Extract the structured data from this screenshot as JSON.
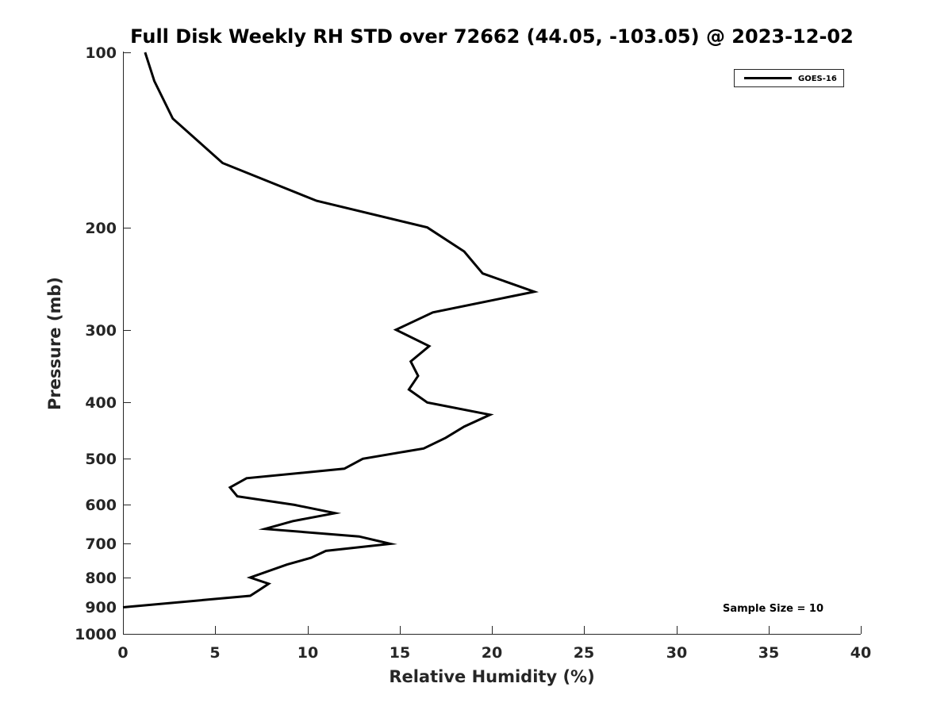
{
  "chart_data": {
    "type": "line",
    "title": "Full Disk Weekly RH STD over 72662 (44.05, -103.05) @ 2023-12-02",
    "xlabel": "Relative Humidity (%)",
    "ylabel": "Pressure (mb)",
    "xlim": [
      0,
      40
    ],
    "ylim": [
      100,
      1000
    ],
    "y_scale": "log",
    "y_reversed": true,
    "grid": false,
    "x_ticks": [
      0,
      5,
      10,
      15,
      20,
      25,
      30,
      35,
      40
    ],
    "x_tick_labels": [
      "0",
      "5",
      "10",
      "15",
      "20",
      "25",
      "30",
      "35",
      "40"
    ],
    "y_ticks": [
      100,
      200,
      300,
      400,
      500,
      600,
      700,
      800,
      900,
      1000
    ],
    "y_tick_labels": [
      "100",
      "200",
      "300",
      "400",
      "500",
      "600",
      "700",
      "800",
      "900",
      "1000"
    ],
    "legend_position": "top-right",
    "series": [
      {
        "name": "GOES-16",
        "color": "#000000",
        "x": [
          1.2,
          1.7,
          2.7,
          5.4,
          10.5,
          16.5,
          18.5,
          19.5,
          22.3,
          16.8,
          14.8,
          16.6,
          15.6,
          16.0,
          15.5,
          16.5,
          19.9,
          18.5,
          17.5,
          16.3,
          13.0,
          12.0,
          6.7,
          5.8,
          6.2,
          9.3,
          11.5,
          9.2,
          7.7,
          12.8,
          14.5,
          11.0,
          10.2,
          8.9,
          6.9,
          7.9,
          7.4,
          6.9,
          0.0
        ],
        "y": [
          100,
          112,
          130,
          155,
          180,
          200,
          220,
          240,
          258,
          280,
          300,
          320,
          340,
          360,
          380,
          400,
          420,
          440,
          460,
          480,
          500,
          520,
          540,
          560,
          580,
          600,
          620,
          640,
          660,
          680,
          700,
          720,
          740,
          760,
          800,
          820,
          840,
          860,
          900
        ]
      }
    ],
    "annotations": [
      "Sample Size = 10"
    ]
  }
}
